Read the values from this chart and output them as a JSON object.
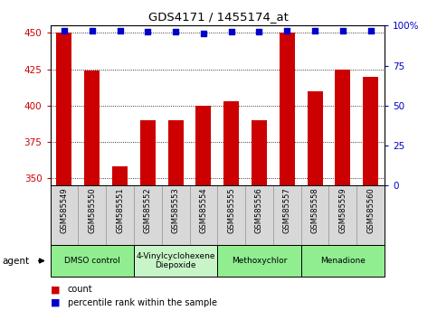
{
  "title": "GDS4171 / 1455174_at",
  "samples": [
    "GSM585549",
    "GSM585550",
    "GSM585551",
    "GSM585552",
    "GSM585553",
    "GSM585554",
    "GSM585555",
    "GSM585556",
    "GSM585557",
    "GSM585558",
    "GSM585559",
    "GSM585560"
  ],
  "bar_values": [
    450,
    424,
    358,
    390,
    390,
    400,
    403,
    390,
    450,
    410,
    425,
    420
  ],
  "dot_values": [
    97,
    97,
    97,
    96,
    96,
    95,
    96,
    96,
    97,
    97,
    97,
    97
  ],
  "bar_color": "#cc0000",
  "dot_color": "#0000cc",
  "ylim_left": [
    345,
    455
  ],
  "ylim_right": [
    0,
    100
  ],
  "yticks_left": [
    350,
    375,
    400,
    425,
    450
  ],
  "yticks_right": [
    0,
    25,
    50,
    75,
    100
  ],
  "ytick_labels_right": [
    "0",
    "25",
    "50",
    "75",
    "100%"
  ],
  "agents": [
    {
      "label": "DMSO control",
      "start": 0,
      "end": 3,
      "color": "#90ee90"
    },
    {
      "label": "4-Vinylcyclohexene\nDiepoxide",
      "start": 3,
      "end": 6,
      "color": "#c8f5c8"
    },
    {
      "label": "Methoxychlor",
      "start": 6,
      "end": 9,
      "color": "#90ee90"
    },
    {
      "label": "Menadione",
      "start": 9,
      "end": 12,
      "color": "#90ee90"
    }
  ],
  "agent_label": "agent",
  "legend_count_label": "count",
  "legend_pct_label": "percentile rank within the sample",
  "bar_width": 0.55,
  "baseline": 345,
  "sample_box_color": "#d8d8d8",
  "sample_box_edge": "#999999"
}
